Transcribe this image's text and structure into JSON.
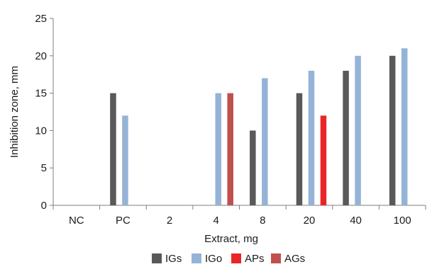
{
  "chart_data": {
    "type": "bar",
    "xlabel": "Extract, mg",
    "ylabel": "Inhibition zone, mm",
    "ylim": [
      0,
      25
    ],
    "yticks": [
      0,
      5,
      10,
      15,
      20,
      25
    ],
    "categories": [
      "NC",
      "PC",
      "2",
      "4",
      "8",
      "20",
      "40",
      "100"
    ],
    "legend_position": "bottom",
    "grid": false,
    "series": [
      {
        "name": "IGs",
        "color": "#595959",
        "values": [
          null,
          15,
          null,
          null,
          10,
          15,
          18,
          20
        ]
      },
      {
        "name": "IGo",
        "color": "#95b3d7",
        "values": [
          null,
          12,
          null,
          15,
          17,
          18,
          20,
          21
        ]
      },
      {
        "name": "APs",
        "color": "#e8262a",
        "values": [
          null,
          null,
          null,
          null,
          null,
          12,
          null,
          null
        ]
      },
      {
        "name": "AGs",
        "color": "#c0504d",
        "values": [
          null,
          null,
          null,
          15,
          null,
          null,
          null,
          null
        ]
      }
    ]
  }
}
